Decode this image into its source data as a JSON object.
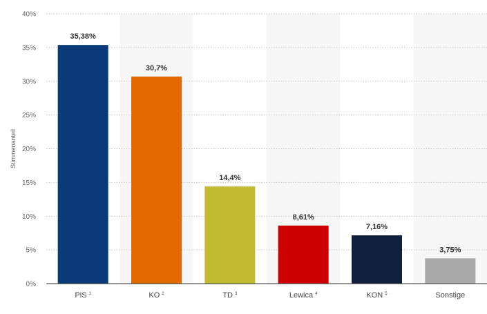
{
  "chart_data": {
    "type": "bar",
    "title": "",
    "xlabel": "",
    "ylabel": "Stimmenanteil",
    "ylim": [
      0,
      40
    ],
    "yticks": [
      0,
      5,
      10,
      15,
      20,
      25,
      30,
      35,
      40
    ],
    "ytick_suffix": "%",
    "grid": true,
    "legend": "none",
    "categories": [
      {
        "label": "PiS",
        "sup": "1"
      },
      {
        "label": "KO",
        "sup": "2"
      },
      {
        "label": "TD",
        "sup": "3"
      },
      {
        "label": "Lewica",
        "sup": "4"
      },
      {
        "label": "KON",
        "sup": "5"
      },
      {
        "label": "Sonstige",
        "sup": ""
      }
    ],
    "values": [
      35.38,
      30.7,
      14.4,
      8.61,
      7.16,
      3.75
    ],
    "value_labels": [
      "35,38%",
      "30,7%",
      "14,4%",
      "8,61%",
      "7,16%",
      "3,75%"
    ],
    "colors": [
      "#0a3a78",
      "#e36a00",
      "#c2bb30",
      "#cc0000",
      "#10203c",
      "#a9a9a9"
    ]
  }
}
